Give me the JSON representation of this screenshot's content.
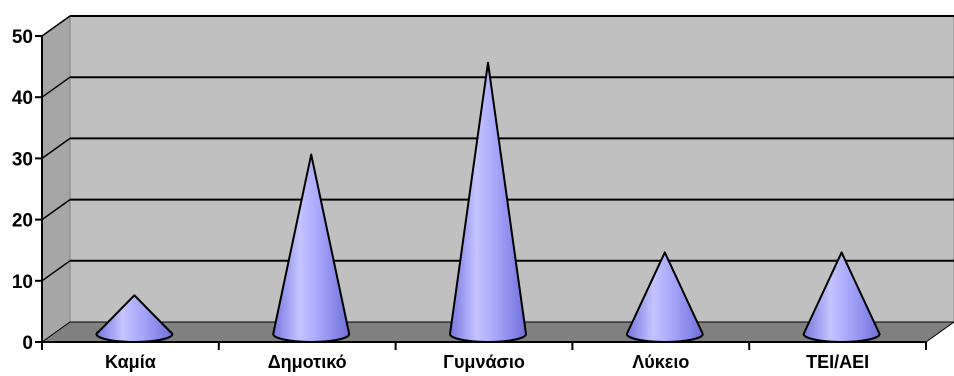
{
  "chart_data": {
    "type": "bar",
    "style": "3d-cone",
    "categories": [
      "Καμία",
      "Δημοτικό",
      "Γυμνάσιο",
      "Λύκειο",
      "ΤΕΙ/ΑΕΙ"
    ],
    "values": [
      6,
      29,
      44,
      13,
      13
    ],
    "ylim": [
      0,
      50
    ],
    "yticks": [
      0,
      10,
      20,
      30,
      40,
      50
    ],
    "title": "",
    "xlabel": "",
    "ylabel": "",
    "grid": true,
    "legend": "none",
    "colors": {
      "wall": "#c0c0c0",
      "floor": "#808080",
      "cone": "#9999ff",
      "cone_light": "#c4c4ff",
      "cone_dark": "#6f6fd8",
      "gridline": "#000000"
    }
  }
}
